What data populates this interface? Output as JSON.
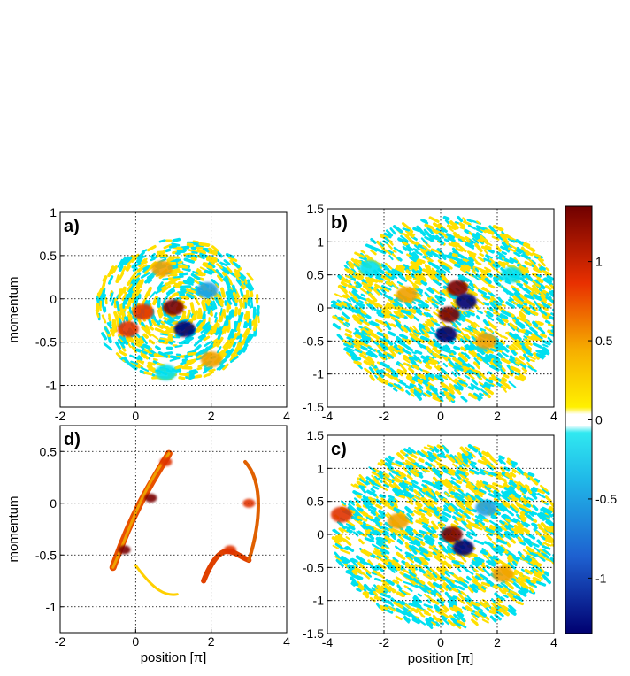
{
  "chart_data": [
    {
      "panel": "a)",
      "type": "heatmap",
      "xlim": [
        -2,
        4
      ],
      "ylim": [
        -1.25,
        1
      ],
      "x_ticks": [
        "-2",
        "0",
        "2",
        "4"
      ],
      "y_ticks": [
        "1",
        "0.5",
        "0",
        "-0.5",
        "-1"
      ],
      "xlabel": "",
      "ylabel": "momentum",
      "grid": true,
      "features": [
        {
          "x": 1.3,
          "y": -0.35,
          "value": -1.0
        },
        {
          "x": 1.0,
          "y": -0.1,
          "value": 1.1
        },
        {
          "x": 0.2,
          "y": -0.15,
          "value": 0.9
        },
        {
          "x": -0.2,
          "y": -0.35,
          "value": 0.8
        },
        {
          "x": 0.7,
          "y": 0.35,
          "value": 0.4
        },
        {
          "x": 2.0,
          "y": -0.7,
          "value": 0.4
        },
        {
          "x": 0.8,
          "y": -0.85,
          "value": -0.3
        },
        {
          "x": 1.9,
          "y": 0.1,
          "value": -0.4
        }
      ]
    },
    {
      "panel": "b)",
      "type": "heatmap",
      "xlim": [
        -4,
        4
      ],
      "ylim": [
        -1.5,
        1.5
      ],
      "x_ticks": [
        "-4",
        "-2",
        "0",
        "2",
        "4"
      ],
      "y_ticks": [
        "1.5",
        "1",
        "0.5",
        "0",
        "-0.5",
        "-1",
        "-1.5"
      ],
      "xlabel": "",
      "ylabel": "",
      "grid": true,
      "features": [
        {
          "x": 0.3,
          "y": -0.1,
          "value": 1.2
        },
        {
          "x": 0.6,
          "y": 0.3,
          "value": 1.0
        },
        {
          "x": 0.9,
          "y": 0.1,
          "value": -0.9
        },
        {
          "x": 0.2,
          "y": -0.4,
          "value": -1.0
        },
        {
          "x": -1.2,
          "y": 0.2,
          "value": 0.4
        },
        {
          "x": 1.6,
          "y": -0.5,
          "value": 0.4
        },
        {
          "x": -2.5,
          "y": 0.6,
          "value": -0.3
        },
        {
          "x": 2.5,
          "y": 0.5,
          "value": -0.3
        }
      ]
    },
    {
      "panel": "d)",
      "type": "heatmap",
      "xlim": [
        -2,
        4
      ],
      "ylim": [
        -1.25,
        0.75
      ],
      "x_ticks": [
        "-2",
        "0",
        "2",
        "4"
      ],
      "y_ticks": [
        "0.5",
        "0",
        "-0.5",
        "-1"
      ],
      "xlabel": "position [π]",
      "ylabel": "momentum",
      "grid": true,
      "features": [
        {
          "x": 0.4,
          "y": 0.05,
          "value": 1.2
        },
        {
          "x": -0.3,
          "y": -0.45,
          "value": 1.1
        },
        {
          "x": 0.8,
          "y": 0.4,
          "value": 0.6
        },
        {
          "x": 2.5,
          "y": -0.45,
          "value": 0.9
        },
        {
          "x": 3.0,
          "y": 0.0,
          "value": 0.8
        }
      ]
    },
    {
      "panel": "c)",
      "type": "heatmap",
      "xlim": [
        -4,
        4
      ],
      "ylim": [
        -1.5,
        1.5
      ],
      "x_ticks": [
        "-4",
        "-2",
        "0",
        "2",
        "4"
      ],
      "y_ticks": [
        "1.5",
        "1",
        "0.5",
        "0",
        "-0.5",
        "-1",
        "-1.5"
      ],
      "xlabel": "position [π]",
      "ylabel": "",
      "grid": true,
      "features": [
        {
          "x": 0.4,
          "y": 0.0,
          "value": 1.1
        },
        {
          "x": 0.8,
          "y": -0.2,
          "value": -1.0
        },
        {
          "x": -1.5,
          "y": 0.2,
          "value": 0.4
        },
        {
          "x": -3.5,
          "y": 0.3,
          "value": 0.6
        },
        {
          "x": 1.6,
          "y": 0.4,
          "value": -0.4
        },
        {
          "x": 2.2,
          "y": -0.6,
          "value": 0.4
        }
      ]
    }
  ],
  "colorbar": {
    "range": [
      -1.35,
      1.35
    ],
    "ticks": [
      "1",
      "0.5",
      "0",
      "-0.5",
      "-1"
    ],
    "colormap": "jet-like, white near zero",
    "colors": {
      "max": "#7a0000",
      "high": "#e03000",
      "mid_high": "#f0a000",
      "low_positive": "#ffe000",
      "zero": "#ffffff",
      "low_negative": "#00e0f0",
      "mid_low": "#20a0e0",
      "min": "#000070"
    }
  }
}
